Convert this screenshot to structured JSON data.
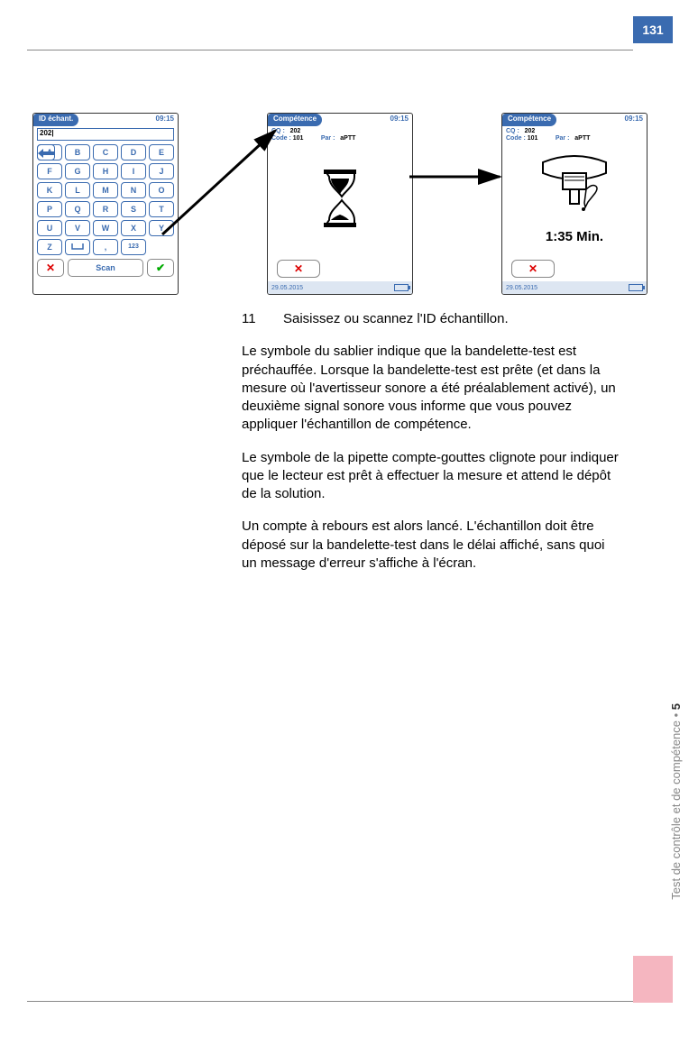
{
  "page_number": "131",
  "side_label": "Test de contrôle et de compétence",
  "side_chapter": "5",
  "colors": {
    "blue": "#3a6bb0",
    "pink": "#f5b6c0",
    "red": "#dd0000",
    "green": "#00aa00",
    "gray": "#888888"
  },
  "screen1": {
    "title": "ID échant.",
    "time": "09:15",
    "input_value": "202|",
    "keys": [
      "A",
      "B",
      "C",
      "D",
      "E",
      "F",
      "G",
      "H",
      "I",
      "J",
      "K",
      "L",
      "M",
      "N",
      "O",
      "P",
      "Q",
      "R",
      "S",
      "T",
      "U",
      "V",
      "W",
      "X",
      "Y",
      "Z",
      "␣",
      ",",
      "123",
      "←"
    ],
    "scan_label": "Scan"
  },
  "screen2": {
    "title": "Compétence",
    "time": "09:15",
    "cq_label": "CQ :",
    "cq_value": "202",
    "code_label": "Code :",
    "code_value": "101",
    "par_label": "Par :",
    "par_value": "aPTT",
    "date": "29.05.2015"
  },
  "screen3": {
    "title": "Compétence",
    "time": "09:15",
    "cq_label": "CQ :",
    "cq_value": "202",
    "code_label": "Code :",
    "code_value": "101",
    "par_label": "Par :",
    "par_value": "aPTT",
    "timer": "1:35 Min.",
    "date": "29.05.2015"
  },
  "text": {
    "step_num": "11",
    "step_text": "Saisissez ou scannez l'ID échantillon.",
    "para1": "Le symbole du sablier indique que la bandelette-test est préchauffée. Lorsque la bandelette-test est prête (et dans la mesure où l'avertisseur sonore a été préalablement activé), un deuxième signal sonore vous informe que vous pouvez appliquer l'échantillon de compétence.",
    "para2": "Le symbole de la pipette compte-gouttes clignote pour indiquer que le lecteur est prêt à effectuer la mesure et attend le dépôt de la solution.",
    "para3": "Un compte à rebours est alors lancé. L'échantillon doit être déposé sur la bandelette-test dans le délai affiché, sans quoi un message d'erreur s'affiche à l'écran."
  }
}
